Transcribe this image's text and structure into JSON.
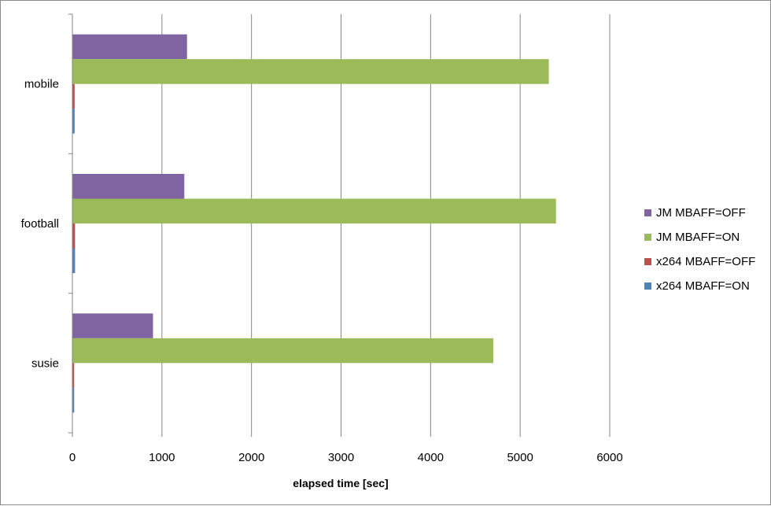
{
  "chart_data": {
    "type": "bar",
    "orientation": "horizontal",
    "categories": [
      "mobile",
      "football",
      "susie"
    ],
    "series": [
      {
        "name": "JM MBAFF=OFF",
        "color": "#8064a2",
        "values": [
          1280,
          1250,
          900
        ]
      },
      {
        "name": "JM MBAFF=ON",
        "color": "#9bbb59",
        "values": [
          5320,
          5400,
          4700
        ]
      },
      {
        "name": "x264 MBAFF=OFF",
        "color": "#c0504d",
        "values": [
          25,
          30,
          20
        ]
      },
      {
        "name": "x264 MBAFF=ON",
        "color": "#4f81bd",
        "values": [
          25,
          30,
          20
        ]
      }
    ],
    "xlim": [
      0,
      6000
    ],
    "xticks": [
      0,
      1000,
      2000,
      3000,
      4000,
      5000,
      6000
    ],
    "xlabel": "elapsed time [sec]",
    "ylabel": "",
    "title": "",
    "grid": "vertical major gridlines",
    "legend": "right"
  }
}
